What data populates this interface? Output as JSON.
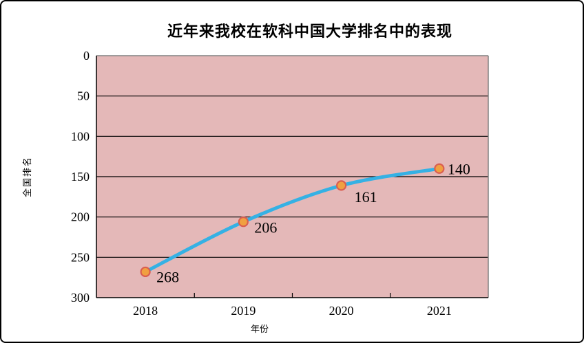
{
  "window": {
    "background": "#ffffff",
    "border_color": "#000000"
  },
  "chart": {
    "title": "近年来我校在软科中国大学排名中的表现",
    "xlabel": "年份",
    "ylabel": "全国排名"
  },
  "chart_data": {
    "type": "line",
    "title": "近年来我校在软科中国大学排名中的表现",
    "categories": [
      "2018",
      "2019",
      "2020",
      "2021"
    ],
    "series": [
      {
        "name": "全国排名",
        "values": [
          268,
          206,
          161,
          140
        ]
      }
    ],
    "data_labels": [
      "268",
      "206",
      "161",
      "140"
    ],
    "xlabel": "年份",
    "ylabel": "全国排名",
    "y_ticks": [
      0,
      50,
      100,
      150,
      200,
      250,
      300
    ],
    "ylim": [
      0,
      300
    ],
    "y_axis_reversed": true,
    "grid": true,
    "legend": "none",
    "smooth_line": true,
    "colors": {
      "plot_background": "#E4B8B8",
      "line": "#35B1E4",
      "marker_fill": "#F0A041",
      "marker_stroke": "#DA5E50",
      "gridline": "#000000",
      "frame": "#808080",
      "axis": "#000000",
      "text": "#000000"
    }
  }
}
